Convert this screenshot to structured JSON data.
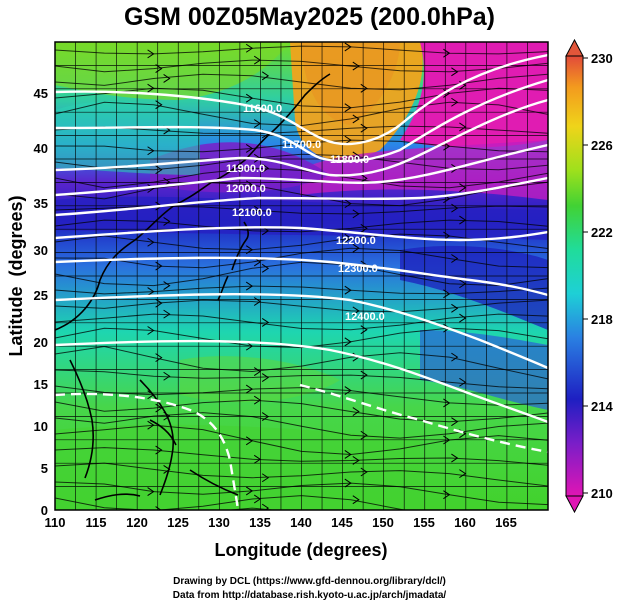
{
  "title": "GSM 00Z05May2025 (200.0hPa)",
  "map": {
    "lon_range": [
      110,
      170
    ],
    "lat_range": [
      0,
      50
    ],
    "x_ticks": [
      "110",
      "115",
      "120",
      "125",
      "130",
      "135",
      "140",
      "145",
      "150",
      "155",
      "160",
      "165"
    ],
    "y_ticks": [
      "0",
      "5",
      "10",
      "15",
      "20",
      "25",
      "30",
      "35",
      "40",
      "45"
    ],
    "x_label": "Longitude (degrees)",
    "y_label": "Latitude  (degrees)",
    "contour_labels": [
      "11600.0",
      "11700.0",
      "11800.0",
      "11900.0",
      "12000.0",
      "12100.0",
      "12200.0",
      "12300.0",
      "12400.0"
    ],
    "colorbar": {
      "ticks": [
        "210",
        "214",
        "218",
        "222",
        "226",
        "230"
      ],
      "colors": [
        "#d81ba6",
        "#6f1fc6",
        "#1d1fbc",
        "#2a7fe0",
        "#1ec6d6",
        "#1be0a0",
        "#3fd43a",
        "#9be21a",
        "#e6d81a",
        "#f0a21f",
        "#e2563a"
      ]
    }
  },
  "credits": {
    "line1": "Drawing by DCL (https://www.gfd-dennou.org/library/dcl/)",
    "line2": "Data from http://database.rish.kyoto-u.ac.jp/arch/jmadata/"
  }
}
